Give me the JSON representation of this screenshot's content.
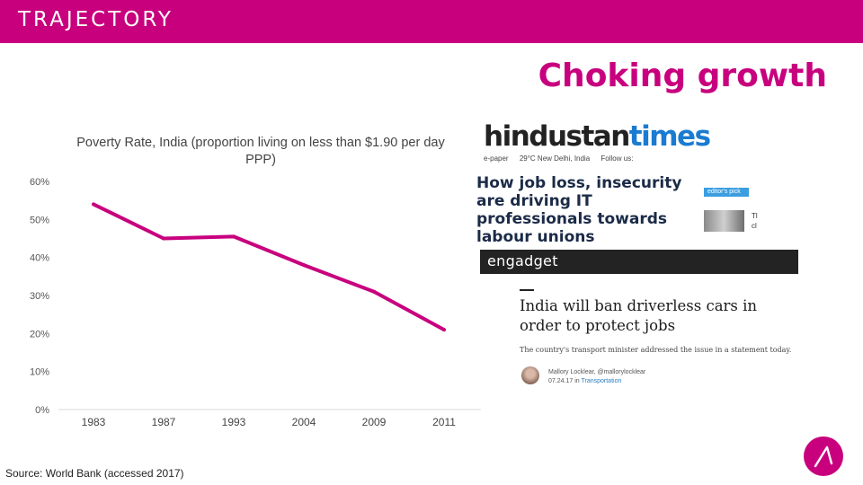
{
  "header": {
    "brand": "TRAJECTORY",
    "bar_color": "#c8007e"
  },
  "slide": {
    "title": "Choking growth",
    "accent": "#c8007e"
  },
  "source": "Source: World Bank (accessed 2017)",
  "chart_data": {
    "type": "line",
    "title": "Poverty Rate, India (proportion living on less than $1.90 per day PPP)",
    "categories": [
      "1983",
      "1987",
      "1993",
      "2004",
      "2009",
      "2011"
    ],
    "series": [
      {
        "name": "Poverty rate",
        "values": [
          0.54,
          0.45,
          0.455,
          0.38,
          0.31,
          0.21
        ],
        "color": "#c8007e"
      }
    ],
    "ylim": [
      0,
      0.6
    ],
    "yticks": [
      0,
      0.1,
      0.2,
      0.3,
      0.4,
      0.5,
      0.6
    ],
    "ytick_labels": [
      "0%",
      "10%",
      "20%",
      "30%",
      "40%",
      "50%",
      "60%"
    ],
    "xlabel": "",
    "ylabel": "",
    "grid": false,
    "legend": "none"
  },
  "clippings": {
    "ht": {
      "logo_dark": "hindustan",
      "logo_blue": "times",
      "nav": [
        "e-paper",
        "29°C New Delhi, India",
        "Follow us:"
      ],
      "headline": "How job loss, insecurity are driving IT professionals towards labour unions",
      "pick_label": "editor's pick",
      "thumb_text": "Tl cl"
    },
    "engadget": {
      "logo": "engadget",
      "headline": "India will ban driverless cars in order to protect jobs",
      "subhead": "The country's transport minister addressed the issue in a statement today.",
      "author": "Mallory Locklear, @mallorylocklear",
      "dateline": "07.24.17 in",
      "category": "Transportation"
    }
  }
}
